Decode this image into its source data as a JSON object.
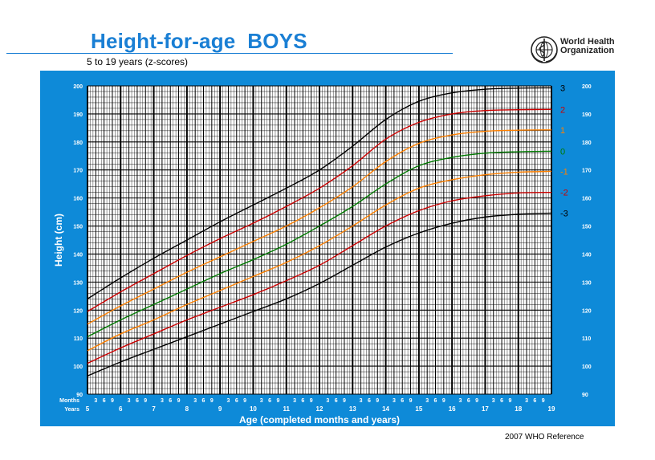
{
  "page": {
    "title": "Height-for-age  BOYS",
    "subtitle": "5 to 19 years (z-scores)",
    "organization": {
      "line1": "World Health",
      "line2": "Organization"
    },
    "logo_icon": "who-emblem-icon",
    "footer": "2007 WHO Reference",
    "colors": {
      "panel": "#0e8ad8",
      "title": "#1a7fd4",
      "grid": "#000000"
    }
  },
  "chart_data": {
    "type": "line",
    "title": "Height-for-age  BOYS",
    "subtitle": "5 to 19 years (z-scores)",
    "xlabel": "Age (completed months and years)",
    "ylabel": "Height (cm)",
    "xlim": [
      5,
      19
    ],
    "ylim": [
      90,
      200
    ],
    "y_ticks": [
      90,
      100,
      110,
      120,
      130,
      140,
      150,
      160,
      170,
      180,
      190,
      200
    ],
    "x_year_ticks": [
      5,
      6,
      7,
      8,
      9,
      10,
      11,
      12,
      13,
      14,
      15,
      16,
      17,
      18,
      19
    ],
    "x_row_label_months": "Months",
    "x_row_label_years": "Years",
    "month_tick_labels": [
      "3",
      "6",
      "9"
    ],
    "grid": true,
    "x": [
      5,
      6,
      7,
      8,
      9,
      10,
      11,
      12,
      13,
      14,
      15,
      16,
      17,
      18,
      19
    ],
    "series": [
      {
        "name": "3",
        "color": "#000000",
        "values": [
          124.0,
          131.5,
          138.5,
          145.0,
          151.5,
          157.5,
          163.5,
          170.0,
          178.5,
          188.0,
          194.5,
          197.5,
          198.8,
          199.2,
          199.3
        ]
      },
      {
        "name": "2",
        "color": "#cc0000",
        "values": [
          119.5,
          126.5,
          133.0,
          139.5,
          145.5,
          151.0,
          157.0,
          163.5,
          171.5,
          181.0,
          187.0,
          190.0,
          191.2,
          191.5,
          191.6
        ]
      },
      {
        "name": "1",
        "color": "#ff8000",
        "values": [
          115.0,
          121.5,
          127.5,
          133.5,
          139.0,
          144.5,
          150.0,
          156.5,
          164.0,
          173.0,
          179.5,
          182.5,
          183.8,
          184.2,
          184.3
        ]
      },
      {
        "name": "0",
        "color": "#007a00",
        "values": [
          110.5,
          116.5,
          122.0,
          127.5,
          133.0,
          138.0,
          143.5,
          150.0,
          157.0,
          165.0,
          171.5,
          174.5,
          176.0,
          176.5,
          176.7
        ]
      },
      {
        "name": "-1",
        "color": "#ff8000",
        "values": [
          105.5,
          111.5,
          116.5,
          122.0,
          127.0,
          132.0,
          137.0,
          143.0,
          150.0,
          157.5,
          163.5,
          166.5,
          168.3,
          169.2,
          169.5
        ]
      },
      {
        "name": "-2",
        "color": "#cc0000",
        "values": [
          101.0,
          106.5,
          111.5,
          116.5,
          121.0,
          125.5,
          130.5,
          136.0,
          143.0,
          150.0,
          155.5,
          159.0,
          160.8,
          161.8,
          162.0
        ]
      },
      {
        "name": "-3",
        "color": "#000000",
        "values": [
          96.5,
          101.5,
          106.0,
          110.5,
          115.0,
          119.5,
          124.0,
          129.5,
          136.0,
          142.5,
          147.5,
          151.0,
          153.2,
          154.2,
          154.6
        ]
      }
    ]
  }
}
